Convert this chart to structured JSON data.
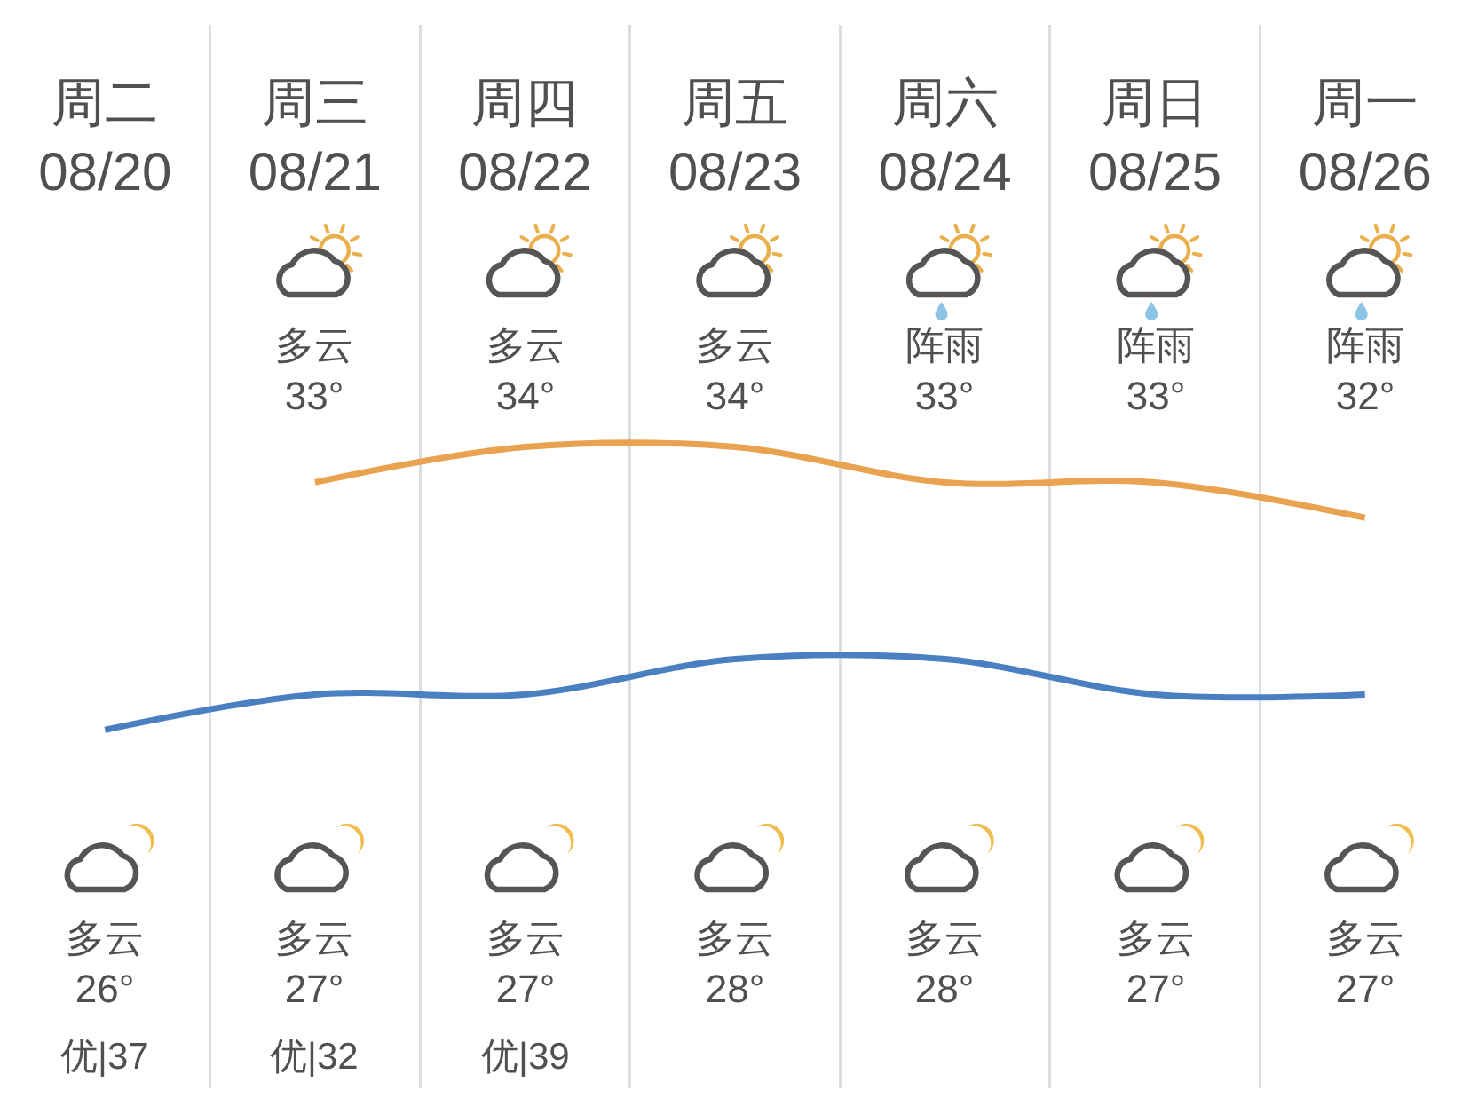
{
  "chart_data": {
    "type": "line",
    "categories": [
      "周二\n08/20",
      "周三\n08/21",
      "周四\n08/22",
      "周五\n08/23",
      "周六\n08/24",
      "周日\n08/25",
      "周一\n08/26"
    ],
    "series": [
      {
        "color": "#e9a24f",
        "values": [
          null,
          33,
          34,
          34,
          33,
          33,
          32
        ],
        "value_labels": [
          null,
          "多云\n33°",
          "多云\n34°",
          "多云\n34°",
          "阵雨\n33°",
          "阵雨\n33°",
          "阵雨\n32°"
        ]
      },
      {
        "color": "#4a7fc1",
        "values": [
          26,
          27,
          27,
          28,
          28,
          27,
          27
        ],
        "value_labels": [
          "多云\n26°",
          "多云\n27°",
          "多云\n27°",
          "多云\n28°",
          "多云\n28°",
          "多云\n27°",
          "多云\n27°"
        ]
      }
    ],
    "annotations": [
      "优|37",
      "优|32",
      "优|39"
    ],
    "marker": "none",
    "grid": "x",
    "tick_labels": "x"
  }
}
